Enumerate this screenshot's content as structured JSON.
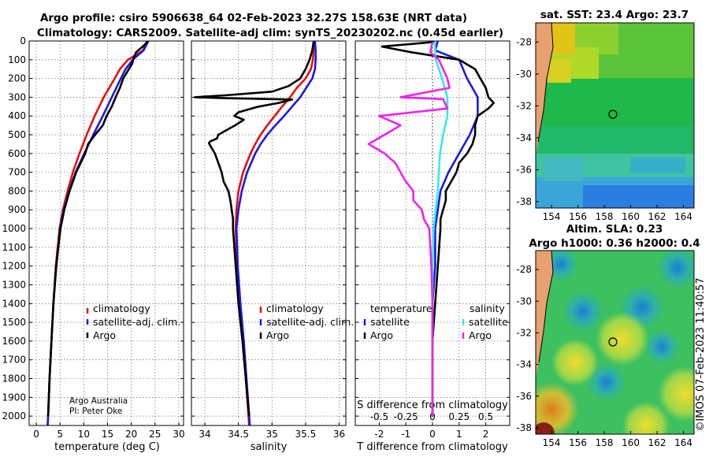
{
  "title": {
    "line1": "Argo profile: csiro 5906638_64 02-Feb-2023 32.27S 158.63E (NRT data)",
    "line2": "Climatology: CARS2009. Satellite-adj clim: synTS_20230202.nc (0.45d earlier)"
  },
  "colors": {
    "climatology": "#e8100c",
    "satellite": "#1a1ae0",
    "argo": "#000000",
    "sat_salinity": "#33eaea",
    "argo_salinity": "#ee22ee"
  },
  "depth_axis": {
    "ylim": [
      0,
      2050
    ],
    "ticks": [
      0,
      100,
      200,
      300,
      400,
      500,
      600,
      700,
      800,
      900,
      1000,
      1100,
      1200,
      1300,
      1400,
      1500,
      1600,
      1700,
      1800,
      1900,
      2000
    ]
  },
  "chart_data": [
    {
      "type": "line",
      "panel": "temperature",
      "xlabel": "temperature (deg C)",
      "xlim": [
        -1.5,
        31
      ],
      "xticks": [
        0,
        5,
        10,
        15,
        20,
        25,
        30
      ],
      "legend": [
        "climatology",
        "satellite-adj. clim.",
        "Argo"
      ],
      "notes": [
        "Argo Australia",
        "PI: Peter Oke"
      ],
      "series": [
        {
          "name": "climatology",
          "depth": [
            0,
            50,
            100,
            150,
            200,
            300,
            400,
            500,
            600,
            700,
            800,
            900,
            1000,
            1200,
            1400,
            1600,
            1800,
            2000,
            2050
          ],
          "values": [
            23.3,
            22.5,
            19.3,
            17.6,
            16.5,
            14.2,
            12.3,
            10.6,
            9.1,
            7.7,
            6.6,
            5.6,
            4.9,
            4.1,
            3.6,
            3.2,
            2.8,
            2.5,
            2.4
          ]
        },
        {
          "name": "satellite-adj. clim.",
          "depth": [
            0,
            50,
            100,
            150,
            200,
            300,
            400,
            500,
            600,
            700,
            800,
            900,
            1000,
            1200,
            1400,
            1600,
            1800,
            2000,
            2050
          ],
          "values": [
            23.6,
            22.6,
            20.3,
            18.8,
            17.8,
            15.9,
            14.0,
            12.0,
            10.1,
            8.3,
            6.9,
            5.8,
            5.0,
            4.2,
            3.6,
            3.2,
            2.8,
            2.5,
            2.4
          ]
        },
        {
          "name": "Argo",
          "depth": [
            5,
            30,
            60,
            90,
            120,
            150,
            200,
            250,
            300,
            350,
            400,
            450,
            500,
            550,
            600,
            700,
            800,
            900,
            1000,
            1200,
            1400,
            1600,
            1800,
            2000
          ],
          "values": [
            23.4,
            22.4,
            21.0,
            20.5,
            20.2,
            19.5,
            18.3,
            17.6,
            16.7,
            15.9,
            14.8,
            14.0,
            12.4,
            10.9,
            10.3,
            8.4,
            7.0,
            5.9,
            5.1,
            4.2,
            3.6,
            3.2,
            2.8,
            2.5
          ]
        }
      ]
    },
    {
      "type": "line",
      "panel": "salinity",
      "xlabel": "salinity",
      "xlim": [
        33.8,
        36.1
      ],
      "xticks": [
        34,
        34.5,
        35,
        35.5,
        36
      ],
      "legend": [
        "climatology",
        "satellite-adj. clim.",
        "Argo"
      ],
      "series": [
        {
          "name": "climatology",
          "depth": [
            0,
            50,
            100,
            150,
            200,
            250,
            300,
            350,
            400,
            450,
            500,
            550,
            600,
            700,
            800,
            900,
            1000,
            1200,
            1400,
            1600,
            1800,
            2000,
            2050
          ],
          "values": [
            35.62,
            35.62,
            35.61,
            35.58,
            35.5,
            35.37,
            35.27,
            35.15,
            35.04,
            34.93,
            34.83,
            34.75,
            34.68,
            34.57,
            34.5,
            34.47,
            34.46,
            34.48,
            34.52,
            34.57,
            34.61,
            34.65,
            34.66
          ]
        },
        {
          "name": "satellite-adj. clim.",
          "depth": [
            0,
            50,
            100,
            150,
            200,
            250,
            300,
            350,
            400,
            450,
            500,
            550,
            600,
            700,
            800,
            900,
            1000,
            1200,
            1400,
            1600,
            1800,
            2000,
            2050
          ],
          "values": [
            35.64,
            35.65,
            35.65,
            35.64,
            35.6,
            35.51,
            35.42,
            35.3,
            35.18,
            35.05,
            34.93,
            34.83,
            34.75,
            34.63,
            34.55,
            34.5,
            34.47,
            34.49,
            34.53,
            34.58,
            34.62,
            34.66,
            34.67
          ]
        },
        {
          "name": "Argo",
          "depth": [
            5,
            50,
            100,
            150,
            200,
            240,
            270,
            290,
            300,
            305,
            312,
            330,
            350,
            380,
            400,
            420,
            450,
            480,
            500,
            520,
            535,
            545,
            570,
            600,
            650,
            700,
            750,
            800,
            850,
            900,
            950,
            1000,
            1100,
            1200,
            1400,
            1600,
            1800,
            2000
          ],
          "values": [
            35.62,
            35.6,
            35.56,
            35.5,
            35.42,
            35.25,
            35.0,
            34.3,
            33.85,
            34.3,
            35.3,
            35.1,
            34.8,
            34.5,
            34.44,
            34.58,
            34.45,
            34.3,
            34.2,
            34.18,
            34.08,
            34.06,
            34.1,
            34.15,
            34.2,
            34.25,
            34.28,
            34.35,
            34.38,
            34.4,
            34.42,
            34.42,
            34.44,
            34.46,
            34.5,
            34.56,
            34.61,
            34.66
          ]
        }
      ]
    },
    {
      "type": "line",
      "panel": "difference",
      "xlabel": "T difference from climatology",
      "xlabel_top": "S difference from climatology",
      "xlim": [
        -2.9,
        2.9
      ],
      "xticks": [
        -2,
        -1,
        0,
        1,
        2
      ],
      "s_ticks": [
        -0.5,
        -0.25,
        0,
        0.25,
        0.5
      ],
      "s_tick_labels": [
        "-0.5",
        "-0.25",
        "0",
        "0.25",
        "0.5"
      ],
      "legend_groups": {
        "temperature": [
          "satellite",
          "Argo"
        ],
        "salinity": [
          "satellite",
          "Argo"
        ]
      },
      "series": [
        {
          "name": "temperature satellite",
          "depth": [
            0,
            50,
            100,
            200,
            300,
            400,
            500,
            600,
            700,
            800,
            900,
            1000,
            1200,
            1400,
            1600,
            1800,
            2000
          ],
          "values": [
            0.2,
            0.1,
            1.0,
            1.3,
            1.7,
            1.7,
            1.4,
            1.0,
            0.6,
            0.3,
            0.2,
            0.1,
            0.1,
            0.0,
            0.0,
            0.0,
            0.0
          ]
        },
        {
          "name": "temperature Argo",
          "depth": [
            5,
            30,
            60,
            100,
            150,
            200,
            250,
            300,
            330,
            360,
            400,
            450,
            500,
            550,
            600,
            650,
            700,
            750,
            800,
            850,
            900,
            950,
            1000,
            1200,
            1400,
            1600,
            1800,
            2000
          ],
          "values": [
            0.1,
            -1.9,
            -0.8,
            1.0,
            1.6,
            1.8,
            2.0,
            2.1,
            2.3,
            2.1,
            1.7,
            1.6,
            1.6,
            1.5,
            1.3,
            1.0,
            0.9,
            0.7,
            0.5,
            0.5,
            0.4,
            0.3,
            0.3,
            0.2,
            0.1,
            0.0,
            0.0,
            0.0
          ]
        },
        {
          "name": "salinity satellite",
          "depth": [
            0,
            100,
            200,
            300,
            400,
            500,
            600,
            700,
            800,
            900,
            1000,
            1200,
            1400,
            1600,
            1800,
            2000
          ],
          "values": [
            0.02,
            0.03,
            0.09,
            0.14,
            0.14,
            0.1,
            0.07,
            0.06,
            0.05,
            0.03,
            0.01,
            0.0,
            0.0,
            0.0,
            0.0,
            0.0
          ]
        },
        {
          "name": "salinity Argo",
          "depth": [
            5,
            60,
            100,
            150,
            200,
            250,
            300,
            310,
            360,
            400,
            450,
            500,
            550,
            600,
            650,
            700,
            750,
            800,
            850,
            900,
            950,
            1000,
            1100,
            1200,
            1400,
            1600,
            1800,
            2000
          ],
          "values": [
            0.0,
            -0.02,
            0.06,
            0.1,
            0.14,
            0.16,
            -0.3,
            0.1,
            0.14,
            -0.5,
            -0.3,
            -0.45,
            -0.6,
            -0.45,
            -0.35,
            -0.3,
            -0.25,
            -0.18,
            -0.18,
            -0.1,
            -0.08,
            -0.03,
            -0.02,
            -0.01,
            0.0,
            0.0,
            0.0,
            0.0
          ]
        }
      ]
    }
  ],
  "maps": [
    {
      "name": "sst",
      "title": "sat. SST: 23.4 Argo: 23.7",
      "xticks": [
        154,
        156,
        158,
        160,
        162,
        164
      ],
      "yticks": [
        -28,
        -30,
        -32,
        -34,
        -36,
        -38
      ],
      "marker": {
        "lon": 158.63,
        "lat": -32.27
      }
    },
    {
      "name": "sla",
      "title_line1": "Altim. SLA: 0.23",
      "title_line2": "Argo h1000: 0.36 h2000: 0.4",
      "xticks": [
        154,
        156,
        158,
        160,
        162,
        164
      ],
      "yticks": [
        -28,
        -30,
        -32,
        -34,
        -36,
        -38
      ],
      "marker": {
        "lon": 158.63,
        "lat": -32.27
      }
    }
  ],
  "stamp": "©IMOS 07-Feb-2023 11:40:57"
}
